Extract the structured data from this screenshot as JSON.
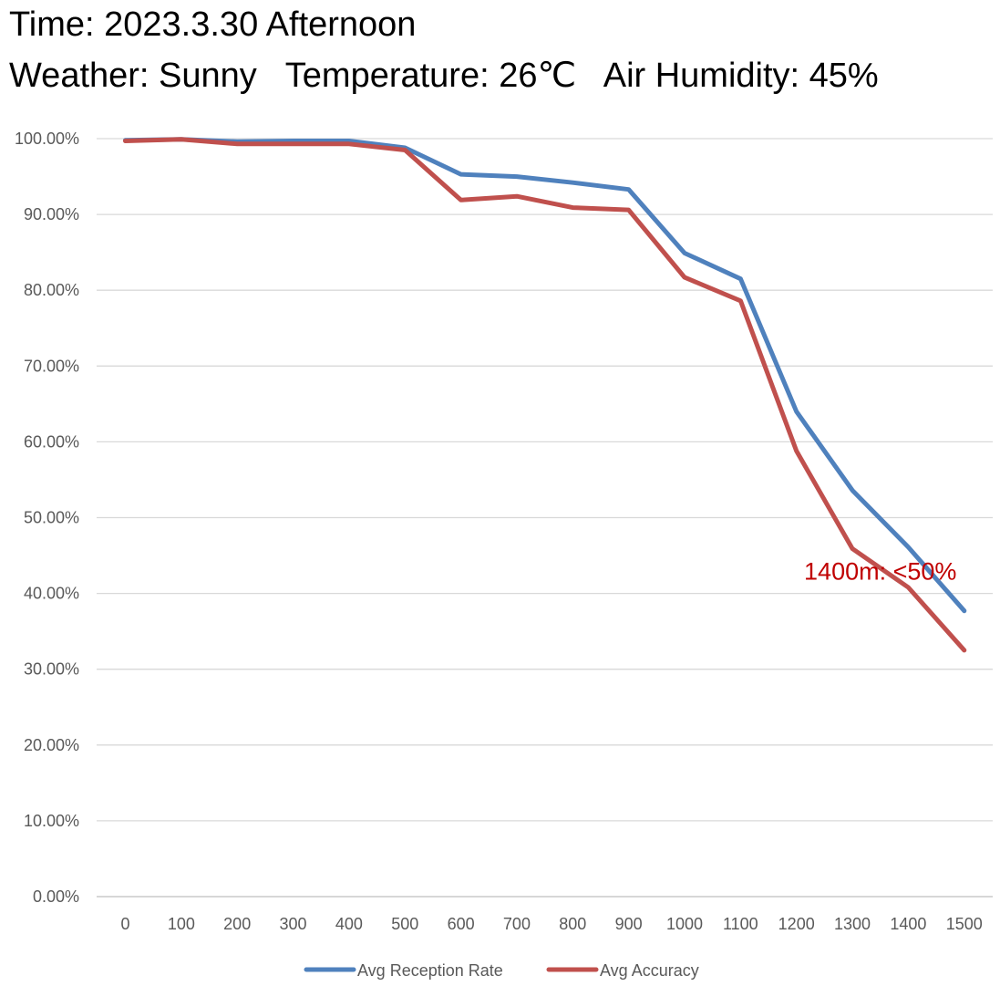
{
  "header": {
    "line1": "Time: 2023.3.30 Afternoon",
    "line2": "Weather: Sunny   Temperature: 26℃   Air Humidity: 45%"
  },
  "chart_data": {
    "type": "line",
    "x": [
      0,
      100,
      200,
      300,
      400,
      500,
      600,
      700,
      800,
      900,
      1000,
      1100,
      1200,
      1300,
      1400,
      1500
    ],
    "x_tick_labels": [
      "0",
      "100",
      "200",
      "300",
      "400",
      "500",
      "600",
      "700",
      "800",
      "900",
      "1000",
      "1100",
      "1200",
      "1300",
      "1400",
      "1500"
    ],
    "y_tick_labels": [
      "0.00%",
      "10.00%",
      "20.00%",
      "30.00%",
      "40.00%",
      "50.00%",
      "60.00%",
      "70.00%",
      "80.00%",
      "90.00%",
      "100.00%"
    ],
    "ylim": [
      0,
      100
    ],
    "y_unit": "%",
    "grid": true,
    "legend_position": "bottom",
    "series": [
      {
        "name": "Avg Reception Rate",
        "color": "#4f81bd",
        "values": [
          99.8,
          99.9,
          99.6,
          99.7,
          99.7,
          98.8,
          95.3,
          95.0,
          94.2,
          93.3,
          84.9,
          81.5,
          64.0,
          53.6,
          46.1,
          37.7
        ]
      },
      {
        "name": "Avg Accuracy",
        "color": "#c0504d",
        "values": [
          99.7,
          99.9,
          99.3,
          99.3,
          99.3,
          98.5,
          91.9,
          92.4,
          90.9,
          90.6,
          81.7,
          78.6,
          58.8,
          45.9,
          40.8,
          32.5
        ]
      }
    ],
    "annotations": [
      {
        "text": "1400m: <50%",
        "x": 1350,
        "y": 41.8,
        "color": "#c00000"
      }
    ]
  }
}
